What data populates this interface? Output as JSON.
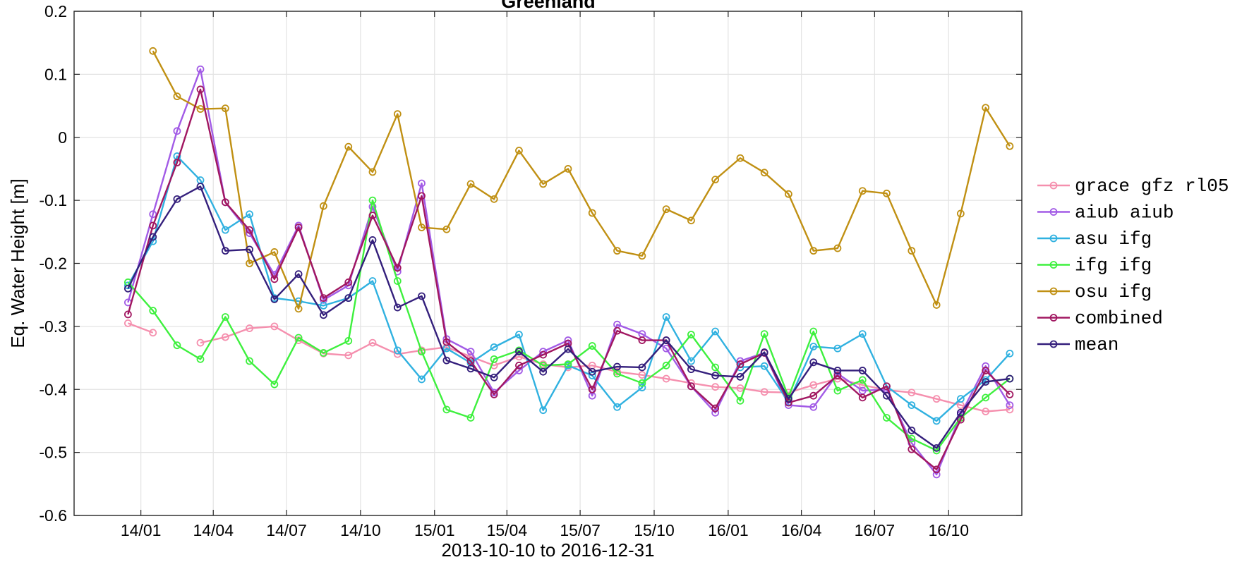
{
  "chart_data": {
    "type": "line",
    "title": "Greenland",
    "xlabel": "2013-10-10 to 2016-12-31",
    "ylabel": "Eq. Water Height [m]",
    "ylim": [
      -0.6,
      0.2
    ],
    "xlim": [
      "2013-10-10",
      "2016-12-31"
    ],
    "x_ticks": [
      {
        "date": "2014-01-01",
        "label": "14/01"
      },
      {
        "date": "2014-04-01",
        "label": "14/04"
      },
      {
        "date": "2014-07-01",
        "label": "14/07"
      },
      {
        "date": "2014-10-01",
        "label": "14/10"
      },
      {
        "date": "2015-01-01",
        "label": "15/01"
      },
      {
        "date": "2015-04-01",
        "label": "15/04"
      },
      {
        "date": "2015-07-01",
        "label": "15/07"
      },
      {
        "date": "2015-10-01",
        "label": "15/10"
      },
      {
        "date": "2016-01-01",
        "label": "16/01"
      },
      {
        "date": "2016-04-01",
        "label": "16/04"
      },
      {
        "date": "2016-07-01",
        "label": "16/07"
      },
      {
        "date": "2016-10-01",
        "label": "16/10"
      }
    ],
    "y_ticks": [
      {
        "value": 0.2,
        "label": "0.2"
      },
      {
        "value": 0.1,
        "label": "0.1"
      },
      {
        "value": 0,
        "label": "0"
      },
      {
        "value": -0.1,
        "label": "-0.1"
      },
      {
        "value": -0.2,
        "label": "-0.2"
      },
      {
        "value": -0.3,
        "label": "-0.3"
      },
      {
        "value": -0.4,
        "label": "-0.4"
      },
      {
        "value": -0.5,
        "label": "-0.5"
      },
      {
        "value": -0.6,
        "label": "-0.6"
      }
    ],
    "grid": true,
    "legend_position": "outside-right",
    "x": [
      "2013-12-16",
      "2014-01-16",
      "2014-02-15",
      "2014-03-16",
      "2014-04-16",
      "2014-05-16",
      "2014-06-16",
      "2014-07-16",
      "2014-08-16",
      "2014-09-16",
      "2014-10-16",
      "2014-11-16",
      "2014-12-16",
      "2015-01-16",
      "2015-02-15",
      "2015-03-16",
      "2015-04-16",
      "2015-05-16",
      "2015-06-16",
      "2015-07-16",
      "2015-08-16",
      "2015-09-16",
      "2015-10-16",
      "2015-11-16",
      "2015-12-16",
      "2016-01-16",
      "2016-02-15",
      "2016-03-16",
      "2016-04-16",
      "2016-05-16",
      "2016-06-16",
      "2016-07-16",
      "2016-08-16",
      "2016-09-16",
      "2016-10-16",
      "2016-11-16",
      "2016-12-16"
    ],
    "series": [
      {
        "name": "grace gfz rl05",
        "color": "#f58fae",
        "values": [
          -0.295,
          -0.31,
          null,
          -0.326,
          -0.317,
          -0.303,
          -0.3,
          -0.322,
          -0.343,
          -0.346,
          -0.326,
          -0.344,
          -0.338,
          -0.333,
          -0.348,
          -0.362,
          -0.348,
          -0.36,
          -0.365,
          -0.362,
          -0.372,
          -0.377,
          -0.383,
          -0.39,
          -0.396,
          -0.398,
          -0.404,
          -0.405,
          -0.393,
          -0.383,
          -0.393,
          -0.401,
          -0.405,
          -0.415,
          -0.425,
          -0.435,
          -0.432
        ]
      },
      {
        "name": "aiub aiub",
        "color": "#a25be6",
        "values": [
          -0.262,
          -0.122,
          0.01,
          0.108,
          -0.103,
          -0.152,
          -0.218,
          -0.14,
          -0.258,
          -0.235,
          -0.11,
          -0.213,
          -0.073,
          -0.32,
          -0.34,
          -0.405,
          -0.37,
          -0.34,
          -0.322,
          -0.41,
          -0.297,
          -0.312,
          -0.335,
          -0.395,
          -0.437,
          -0.355,
          -0.342,
          -0.425,
          -0.428,
          -0.375,
          -0.402,
          -0.4,
          -0.485,
          -0.535,
          -0.44,
          -0.363,
          -0.425
        ]
      },
      {
        "name": "asu ifg",
        "color": "#30b1e0",
        "values": [
          -0.235,
          -0.165,
          -0.03,
          -0.068,
          -0.147,
          -0.122,
          -0.255,
          -0.26,
          -0.267,
          -0.255,
          -0.228,
          -0.338,
          -0.384,
          -0.335,
          -0.358,
          -0.333,
          -0.313,
          -0.433,
          -0.362,
          -0.378,
          -0.428,
          -0.397,
          -0.285,
          -0.355,
          -0.308,
          -0.365,
          -0.363,
          -0.42,
          -0.332,
          -0.335,
          -0.312,
          -0.395,
          -0.425,
          -0.45,
          -0.415,
          -0.385,
          -0.343
        ]
      },
      {
        "name": "ifg ifg",
        "color": "#3ef03e",
        "values": [
          -0.23,
          -0.275,
          -0.33,
          -0.352,
          -0.285,
          -0.355,
          -0.392,
          -0.318,
          -0.342,
          -0.323,
          -0.1,
          -0.228,
          -0.34,
          -0.432,
          -0.445,
          -0.352,
          -0.338,
          -0.362,
          -0.36,
          -0.331,
          -0.375,
          -0.39,
          -0.362,
          -0.313,
          -0.365,
          -0.418,
          -0.312,
          -0.412,
          -0.308,
          -0.402,
          -0.385,
          -0.445,
          -0.478,
          -0.497,
          -0.445,
          -0.413,
          -0.383
        ]
      },
      {
        "name": "osu ifg",
        "color": "#c09013",
        "values": [
          null,
          0.137,
          0.065,
          0.045,
          0.046,
          -0.2,
          -0.182,
          -0.272,
          -0.109,
          -0.015,
          -0.055,
          0.037,
          -0.143,
          -0.146,
          -0.074,
          -0.098,
          -0.021,
          -0.074,
          -0.05,
          -0.12,
          -0.18,
          -0.188,
          -0.114,
          -0.132,
          -0.067,
          -0.033,
          -0.056,
          -0.09,
          -0.18,
          -0.176,
          -0.085,
          -0.089,
          -0.18,
          -0.266,
          -0.121,
          0.047,
          -0.014
        ]
      },
      {
        "name": "combined",
        "color": "#a11761",
        "values": [
          -0.281,
          -0.14,
          -0.04,
          0.076,
          -0.103,
          -0.147,
          -0.225,
          -0.143,
          -0.255,
          -0.23,
          -0.124,
          -0.207,
          -0.093,
          -0.325,
          -0.355,
          -0.408,
          -0.362,
          -0.345,
          -0.327,
          -0.4,
          -0.307,
          -0.322,
          -0.322,
          -0.395,
          -0.43,
          -0.36,
          -0.342,
          -0.421,
          -0.41,
          -0.378,
          -0.413,
          -0.395,
          -0.495,
          -0.527,
          -0.448,
          -0.37,
          -0.408
        ]
      },
      {
        "name": "mean",
        "color": "#341f7c",
        "values": [
          -0.24,
          -0.158,
          -0.098,
          -0.078,
          -0.18,
          -0.178,
          -0.257,
          -0.217,
          -0.282,
          -0.255,
          -0.163,
          -0.27,
          -0.252,
          -0.354,
          -0.367,
          -0.381,
          -0.34,
          -0.372,
          -0.336,
          -0.372,
          -0.364,
          -0.365,
          -0.322,
          -0.368,
          -0.378,
          -0.38,
          -0.341,
          -0.415,
          -0.357,
          -0.37,
          -0.37,
          -0.41,
          -0.465,
          -0.493,
          -0.437,
          -0.388,
          -0.383
        ]
      }
    ]
  }
}
